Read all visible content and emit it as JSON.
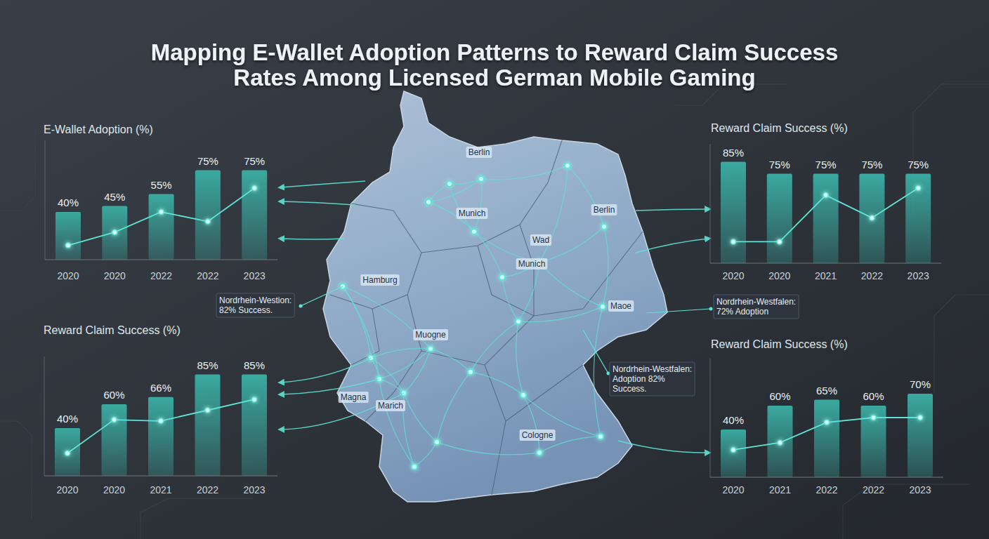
{
  "title": "Mapping E-Wallet Adoption Patterns to Reward Claim Success Rates Among Licensed German Mobile Gaming",
  "chart_data": [
    {
      "type": "bar",
      "title": "E-Wallet Adoption (%)",
      "categories": [
        "2020",
        "2020",
        "2022",
        "2022",
        "2023"
      ],
      "series": [
        {
          "type": "bar",
          "color": "#3aa99f",
          "values": [
            40,
            45,
            55,
            75,
            75
          ],
          "value_labels": [
            "40%",
            "45%",
            "55%",
            "75%",
            "75%"
          ],
          "data_labels": true
        },
        {
          "type": "line",
          "color": "#5fe3d6",
          "marker": "circle",
          "line_style": "solid",
          "values": [
            12,
            23,
            40,
            32,
            60
          ]
        }
      ],
      "ylim": [
        0,
        100
      ],
      "tick_labels": "x"
    },
    {
      "type": "bar",
      "title": "Reward Claim Success (%)",
      "categories": [
        "2020",
        "2020",
        "2021",
        "2022",
        "2023"
      ],
      "series": [
        {
          "type": "bar",
          "color": "#3aa99f",
          "values": [
            85,
            75,
            75,
            75,
            75
          ],
          "value_labels": [
            "85%",
            "75%",
            "75%",
            "75%",
            "75%"
          ],
          "data_labels": true
        },
        {
          "type": "line",
          "color": "#5fe3d6",
          "marker": "circle",
          "line_style": "solid",
          "values": [
            18,
            18,
            57,
            38,
            63
          ]
        }
      ],
      "ylim": [
        0,
        100
      ],
      "tick_labels": "x"
    },
    {
      "type": "bar",
      "title": "Reward Claim Success (%)",
      "categories": [
        "2020",
        "2020",
        "2021",
        "2022",
        "2023"
      ],
      "series": [
        {
          "type": "bar",
          "color": "#3aa99f",
          "values": [
            40,
            60,
            66,
            85,
            85
          ],
          "value_labels": [
            "40%",
            "60%",
            "66%",
            "85%",
            "85%"
          ],
          "data_labels": true
        },
        {
          "type": "line",
          "color": "#5fe3d6",
          "marker": "circle",
          "line_style": "solid",
          "values": [
            19,
            47,
            46,
            55,
            64
          ]
        }
      ],
      "ylim": [
        0,
        100
      ],
      "tick_labels": "x"
    },
    {
      "type": "bar",
      "title": "Reward Claim Success (%)",
      "categories": [
        "2020",
        "2021",
        "2022",
        "2022",
        "2023"
      ],
      "series": [
        {
          "type": "bar",
          "color": "#3aa99f",
          "values": [
            40,
            60,
            65,
            60,
            70
          ],
          "value_labels": [
            "40%",
            "60%",
            "65%",
            "60%",
            "70%"
          ],
          "data_labels": true
        },
        {
          "type": "line",
          "color": "#5fe3d6",
          "marker": "circle",
          "line_style": "solid",
          "values": [
            23,
            29,
            46,
            50,
            50
          ]
        }
      ],
      "ylim": [
        0,
        100
      ],
      "tick_labels": "x"
    }
  ],
  "map": {
    "cities": [
      "Berlin",
      "Munich",
      "Wad",
      "Munich",
      "Berlin",
      "Hamburg",
      "Muogne",
      "Maoe",
      "Magna",
      "Marich",
      "Cologne"
    ],
    "annotations": [
      {
        "lines": [
          "Nordrhein-Westion:",
          "82% Success."
        ]
      },
      {
        "lines": [
          "Nordrhein-Westfalen:",
          "72% Adoption"
        ]
      },
      {
        "lines": [
          "Nordrhein-Westfalen:",
          "Adoption 82%",
          "Success."
        ]
      }
    ]
  }
}
